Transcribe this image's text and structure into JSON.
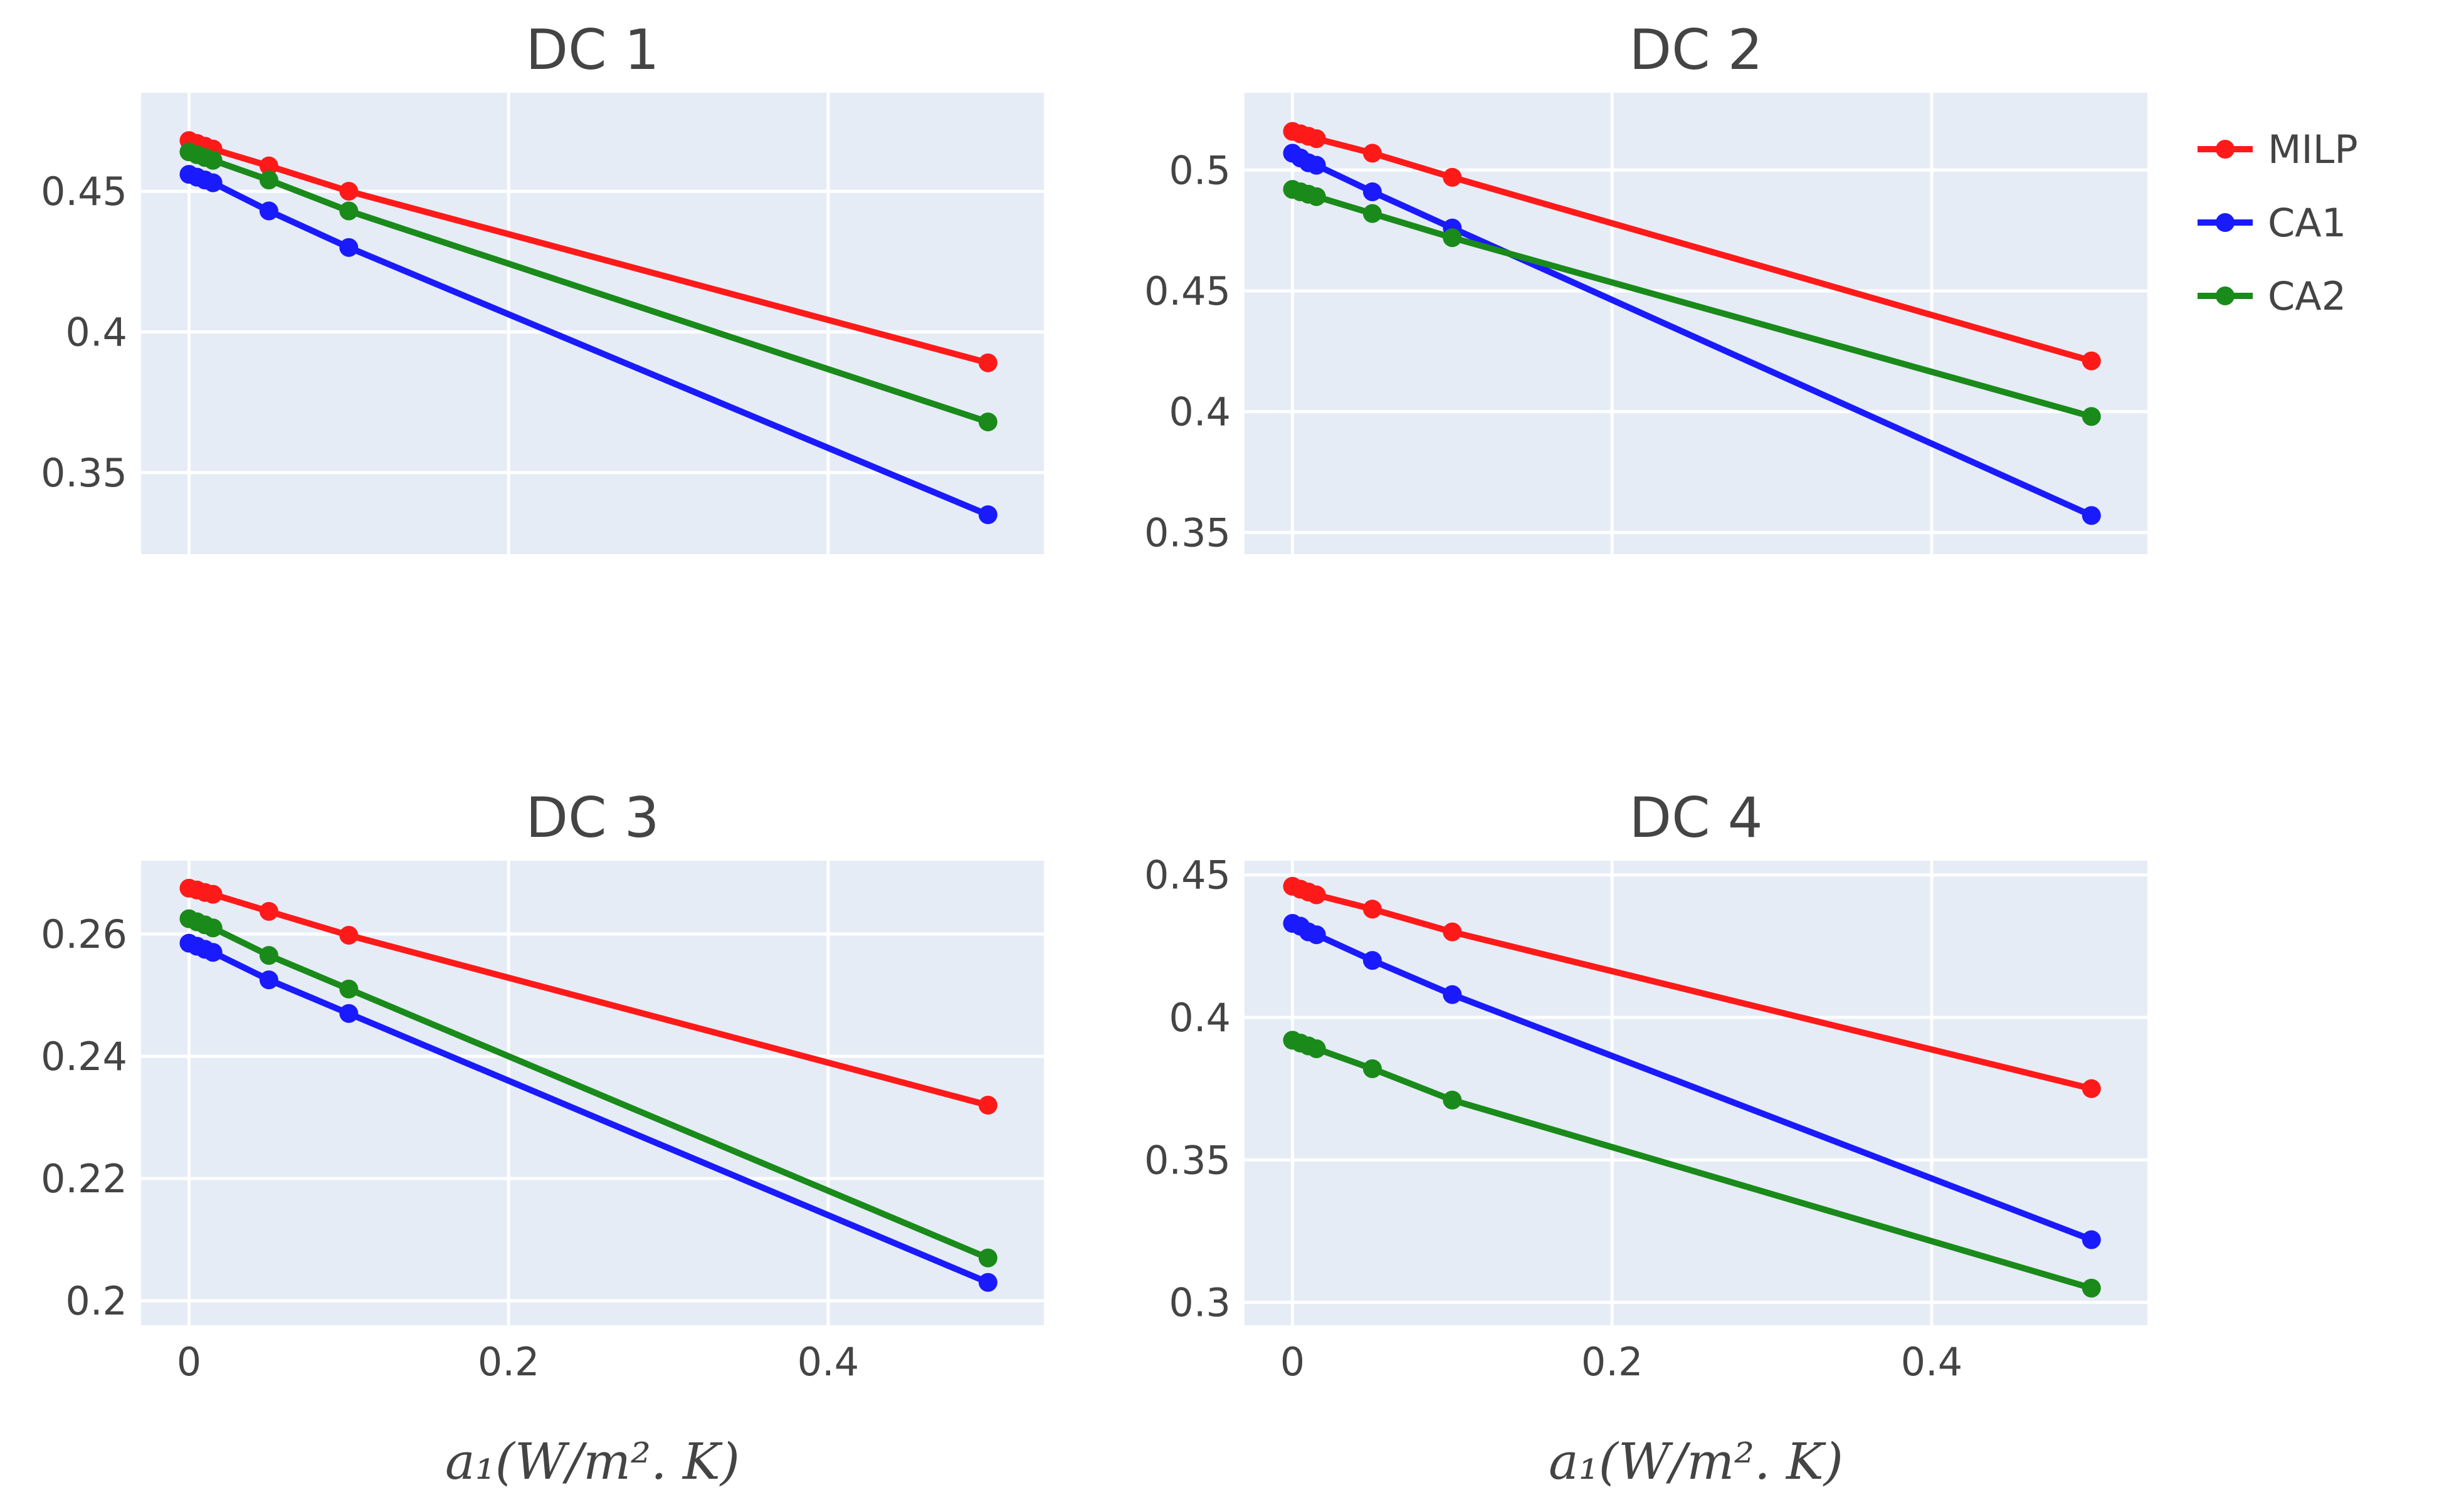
{
  "chart_data": {
    "type": "line",
    "legend": {
      "position": "right",
      "entries": [
        {
          "name": "MILP",
          "color": "#ff1a1a"
        },
        {
          "name": "CA1",
          "color": "#1a1aff"
        },
        {
          "name": "CA2",
          "color": "#1a8a1a"
        }
      ]
    },
    "xlabel": "a₁(W/m². K)",
    "x": [
      0,
      0.005,
      0.01,
      0.015,
      0.05,
      0.1,
      0.5
    ],
    "xlim": [
      -0.03,
      0.535
    ],
    "xticks": [
      0,
      0.2,
      0.4
    ],
    "xtick_labels": [
      "0",
      "0.2",
      "0.4"
    ],
    "subplots": [
      {
        "title": "DC 1",
        "ylim": [
          0.321,
          0.485
        ],
        "yticks": [
          0.35,
          0.4,
          0.45
        ],
        "ytick_labels": [
          "0.35",
          "0.4",
          "0.45"
        ],
        "series": [
          {
            "name": "MILP",
            "values": [
              0.468,
              0.467,
              0.466,
              0.465,
              0.459,
              0.45,
              0.389
            ]
          },
          {
            "name": "CA1",
            "values": [
              0.456,
              0.455,
              0.454,
              0.453,
              0.443,
              0.43,
              0.335
            ]
          },
          {
            "name": "CA2",
            "values": [
              0.464,
              0.463,
              0.462,
              0.461,
              0.454,
              0.443,
              0.368
            ]
          }
        ]
      },
      {
        "title": "DC 2",
        "ylim": [
          0.341,
          0.532
        ],
        "yticks": [
          0.35,
          0.4,
          0.45,
          0.5
        ],
        "ytick_labels": [
          "0.35",
          "0.4",
          "0.45",
          "0.5"
        ],
        "series": [
          {
            "name": "MILP",
            "values": [
              0.516,
              0.515,
              0.514,
              0.513,
              0.507,
              0.497,
              0.421
            ]
          },
          {
            "name": "CA1",
            "values": [
              0.507,
              0.505,
              0.503,
              0.502,
              0.491,
              0.476,
              0.357
            ]
          },
          {
            "name": "CA2",
            "values": [
              0.492,
              0.491,
              0.49,
              0.489,
              0.482,
              0.472,
              0.398
            ]
          }
        ]
      },
      {
        "title": "DC 3",
        "ylim": [
          0.196,
          0.272
        ],
        "yticks": [
          0.2,
          0.22,
          0.24,
          0.26
        ],
        "ytick_labels": [
          "0.2",
          "0.22",
          "0.24",
          "0.26"
        ],
        "series": [
          {
            "name": "MILP",
            "values": [
              0.2675,
              0.2672,
              0.2668,
              0.2665,
              0.2637,
              0.2598,
              0.232
            ]
          },
          {
            "name": "CA1",
            "values": [
              0.2585,
              0.258,
              0.2575,
              0.257,
              0.2525,
              0.247,
              0.203
            ]
          },
          {
            "name": "CA2",
            "values": [
              0.2625,
              0.262,
              0.2615,
              0.261,
              0.2565,
              0.251,
              0.207
            ]
          }
        ]
      },
      {
        "title": "DC 4",
        "ylim": [
          0.292,
          0.455
        ],
        "yticks": [
          0.3,
          0.35,
          0.4,
          0.45
        ],
        "ytick_labels": [
          "0.3",
          "0.35",
          "0.4",
          "0.45"
        ],
        "series": [
          {
            "name": "MILP",
            "values": [
              0.446,
              0.445,
              0.444,
              0.443,
              0.438,
              0.43,
              0.375
            ]
          },
          {
            "name": "CA1",
            "values": [
              0.433,
              0.432,
              0.43,
              0.429,
              0.42,
              0.408,
              0.322
            ]
          },
          {
            "name": "CA2",
            "values": [
              0.392,
              0.391,
              0.39,
              0.389,
              0.382,
              0.371,
              0.305
            ]
          }
        ]
      }
    ]
  }
}
